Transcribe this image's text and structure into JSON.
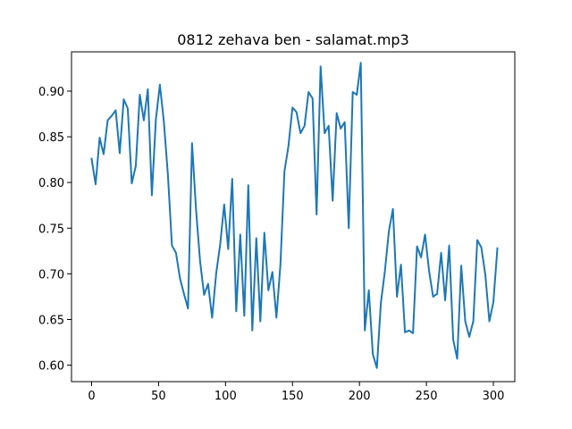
{
  "chart_data": {
    "type": "line",
    "title": "0812 zehava ben - salamat.mp3",
    "xlabel": "",
    "ylabel": "",
    "xlim": [
      -15,
      316
    ],
    "ylim": [
      0.582,
      0.943
    ],
    "xticks": [
      0,
      50,
      100,
      150,
      200,
      250,
      300
    ],
    "xtick_labels": [
      "0",
      "50",
      "100",
      "150",
      "200",
      "250",
      "300"
    ],
    "yticks": [
      0.6,
      0.65,
      0.7,
      0.75,
      0.8,
      0.85,
      0.9
    ],
    "ytick_labels": [
      "0.60",
      "0.65",
      "0.70",
      "0.75",
      "0.80",
      "0.85",
      "0.90"
    ],
    "grid": false,
    "series_color": "#1f77b4",
    "series": [
      {
        "x": [
          0,
          3,
          6,
          9,
          12,
          15,
          18,
          21,
          24,
          27,
          30,
          33,
          36,
          39,
          42,
          45,
          48,
          51,
          54,
          57,
          60,
          63,
          66,
          69,
          72,
          75,
          78,
          81,
          84,
          87,
          90,
          93,
          96,
          99,
          102,
          105,
          108,
          111,
          114,
          117,
          120,
          123,
          126,
          129,
          132,
          135,
          138,
          141,
          144,
          147,
          150,
          153,
          156,
          159,
          162,
          165,
          168,
          171,
          174,
          177,
          180,
          183,
          186,
          189,
          192,
          195,
          198,
          201,
          204,
          207,
          210,
          213,
          216,
          219,
          222,
          225,
          228,
          231,
          234,
          237,
          240,
          243,
          246,
          249,
          252,
          255,
          258,
          261,
          264,
          267,
          270,
          273,
          276,
          279,
          282,
          285,
          288,
          291,
          294,
          297,
          300,
          303
        ],
        "values": [
          0.826,
          0.798,
          0.849,
          0.831,
          0.868,
          0.873,
          0.879,
          0.832,
          0.891,
          0.881,
          0.799,
          0.818,
          0.896,
          0.868,
          0.902,
          0.786,
          0.869,
          0.907,
          0.866,
          0.808,
          0.731,
          0.723,
          0.695,
          0.678,
          0.662,
          0.843,
          0.77,
          0.714,
          0.677,
          0.689,
          0.652,
          0.7,
          0.732,
          0.776,
          0.727,
          0.804,
          0.659,
          0.743,
          0.654,
          0.797,
          0.638,
          0.739,
          0.648,
          0.745,
          0.682,
          0.702,
          0.652,
          0.71,
          0.812,
          0.84,
          0.882,
          0.877,
          0.854,
          0.862,
          0.899,
          0.892,
          0.765,
          0.927,
          0.854,
          0.862,
          0.78,
          0.876,
          0.859,
          0.866,
          0.75,
          0.899,
          0.896,
          0.931,
          0.638,
          0.682,
          0.612,
          0.597,
          0.668,
          0.703,
          0.747,
          0.771,
          0.675,
          0.71,
          0.636,
          0.638,
          0.635,
          0.73,
          0.718,
          0.743,
          0.703,
          0.675,
          0.678,
          0.723,
          0.671,
          0.731,
          0.628,
          0.607,
          0.709,
          0.648,
          0.631,
          0.648,
          0.737,
          0.729,
          0.699,
          0.648,
          0.669,
          0.728
        ]
      }
    ]
  }
}
